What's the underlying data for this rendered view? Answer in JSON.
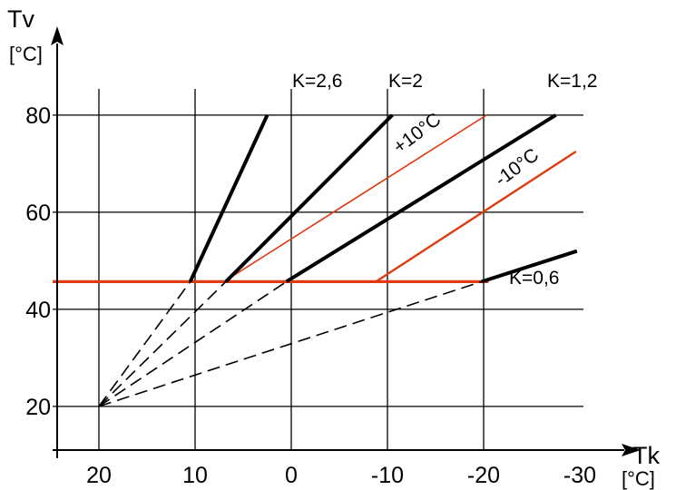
{
  "chart_data": {
    "type": "line",
    "title": "",
    "x_axis": {
      "label": "Tk",
      "unit": "[°C]",
      "range": [
        25,
        -32
      ],
      "reversed": true,
      "ticks": [
        20,
        10,
        0,
        -10,
        -20,
        -30
      ],
      "tick_labels": [
        "20",
        "10",
        "0",
        "-10",
        "-20",
        "-30"
      ]
    },
    "y_axis": {
      "label": "Tv",
      "unit": "[°C]",
      "range": [
        11,
        85
      ],
      "ticks": [
        20,
        40,
        60,
        80
      ],
      "tick_labels": [
        "20",
        "40",
        "60",
        "80"
      ]
    },
    "grid": true,
    "horizontal_gridlines": [
      20,
      40,
      60,
      80
    ],
    "vertical_gridlines": [
      20,
      10,
      0,
      -10,
      -20
    ],
    "origin_point": {
      "x": 20,
      "y": 20
    },
    "heating_curves": [
      {
        "name": "K=2,6",
        "label": "K=2,6",
        "dashed_from": [
          20,
          20
        ],
        "solid_from": [
          10.5,
          45.7
        ],
        "solid_to": [
          2.5,
          80
        ]
      },
      {
        "name": "K=2",
        "label": "K=2",
        "dashed_from": [
          20,
          20
        ],
        "solid_from": [
          6.8,
          45.7
        ],
        "solid_to": [
          -10.5,
          80
        ]
      },
      {
        "name": "K=1,2",
        "label": "K=1,2",
        "dashed_from": [
          20,
          20
        ],
        "solid_from": [
          0.5,
          45.7
        ],
        "solid_to": [
          -27.5,
          80
        ]
      },
      {
        "name": "K=0,6",
        "label": "K=0,6",
        "dashed_from": [
          20,
          20
        ],
        "solid_from": [
          -19.8,
          45.7
        ],
        "solid_to": [
          -29.7,
          52
        ]
      }
    ],
    "limit_line": {
      "y": 45.7,
      "x_from": 25,
      "x_to": -20.5,
      "color": "#e03a10"
    },
    "room_temperature_curves": [
      {
        "name": "+10°C",
        "label": "+10°C",
        "from": [
          7,
          45.7
        ],
        "to": [
          -20.3,
          80
        ],
        "color": "#e03a10"
      },
      {
        "name": "-10°C",
        "label": "-10°C",
        "from": [
          -8.8,
          45.7
        ],
        "to": [
          -29.6,
          72.5
        ],
        "color": "#e03a10"
      }
    ],
    "colors": {
      "curve": "#000000",
      "accent": "#e03a10",
      "grid": "#000000",
      "background": "#ffffff"
    }
  }
}
